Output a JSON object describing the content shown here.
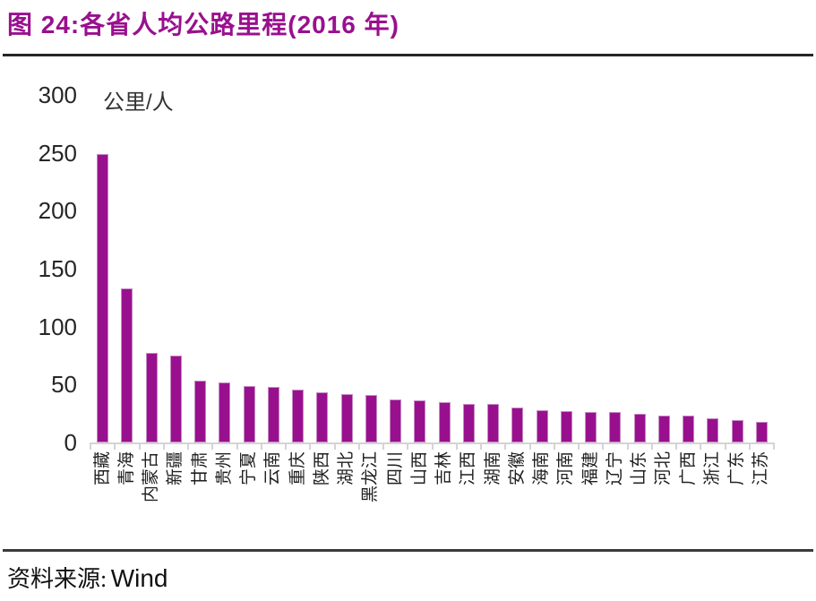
{
  "title": "图 24:各省人均公路里程(2016 年)",
  "source": {
    "label": "资料来源:",
    "value": "Wind"
  },
  "chart_data": {
    "type": "bar",
    "title": "各省人均公路里程(2016 年)",
    "xlabel": "",
    "ylabel": "公里/人",
    "ylim": [
      0,
      300
    ],
    "yticks": [
      0,
      50,
      100,
      150,
      200,
      250,
      300
    ],
    "grid": false,
    "legend": "none",
    "bar_color": "#99108E",
    "bar_border_color": "#c48ac4",
    "axis_color": "#d4d4d4",
    "categories": [
      "西藏",
      "青海",
      "内蒙古",
      "新疆",
      "甘肃",
      "贵州",
      "宁夏",
      "云南",
      "重庆",
      "陕西",
      "湖北",
      "黑龙江",
      "四川",
      "山西",
      "吉林",
      "江西",
      "湖南",
      "安徽",
      "海南",
      "河南",
      "福建",
      "辽宁",
      "山东",
      "河北",
      "广西",
      "浙江",
      "广东",
      "江苏"
    ],
    "values": [
      249,
      133,
      77,
      75,
      53,
      52,
      49,
      48,
      46,
      43,
      42,
      41,
      37,
      36,
      35,
      33,
      33,
      30,
      28,
      27,
      26,
      26,
      25,
      23,
      23,
      21,
      19,
      18
    ]
  }
}
